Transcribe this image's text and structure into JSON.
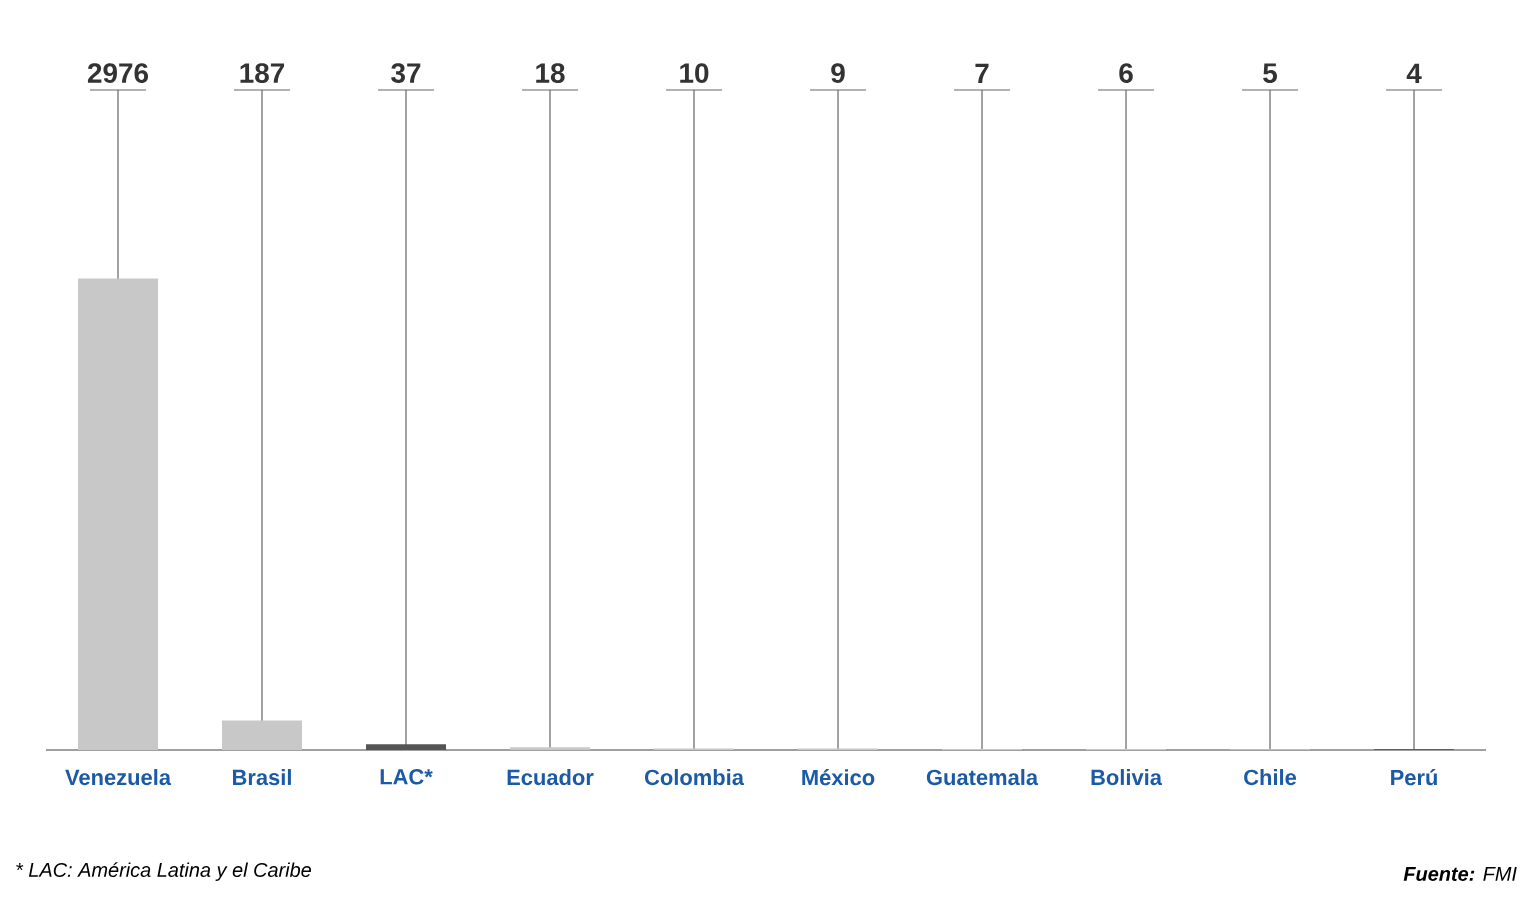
{
  "chart_data": {
    "type": "bar",
    "categories": [
      "Venezuela",
      "Brasil",
      "LAC*",
      "Ecuador",
      "Colombia",
      "México",
      "Guatemala",
      "Bolivia",
      "Chile",
      "Perú"
    ],
    "values": [
      2976,
      187,
      37,
      18,
      10,
      9,
      7,
      6,
      5,
      4
    ],
    "colors": [
      "#c8c8c8",
      "#c8c8c8",
      "#555555",
      "#c8c8c8",
      "#c8c8c8",
      "#c8c8c8",
      "#c8c8c8",
      "#c8c8c8",
      "#c8c8c8",
      "#1f4e9a"
    ],
    "data_labels": true,
    "grid": "x",
    "annotations": [
      "* LAC: América Latina y el Caribe",
      "**Fuente:** FMI"
    ]
  }
}
